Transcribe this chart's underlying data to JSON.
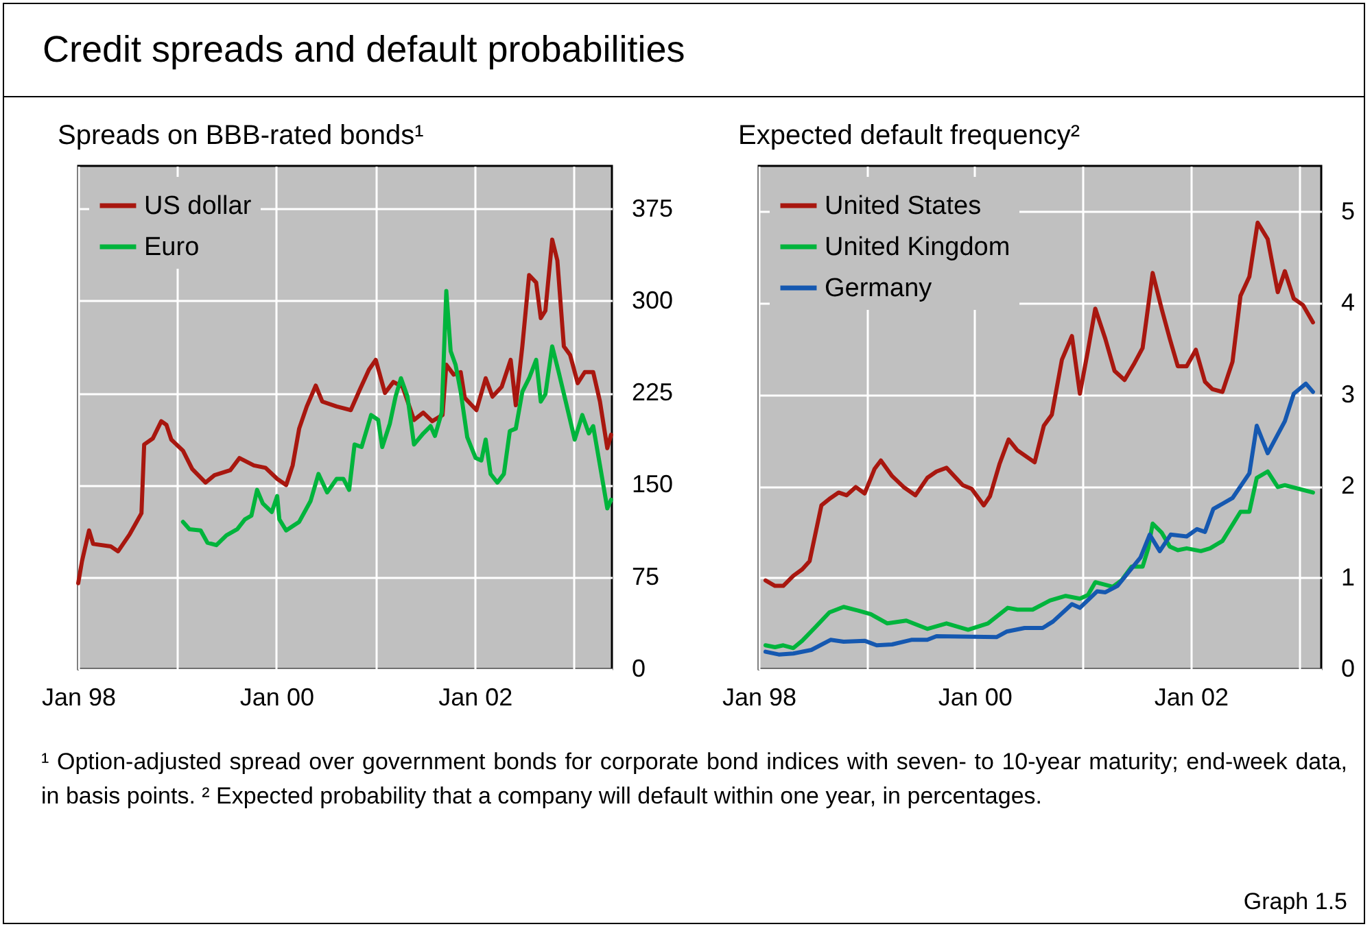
{
  "chart_data": [
    {
      "type": "line",
      "title": "Credit spreads and default probabilities",
      "subtitle": "Spreads on BBB-rated bonds¹",
      "legend": "top left",
      "grid": true,
      "line_style": "solid",
      "xlim": [
        "1998-01-01",
        "2003-05-21"
      ],
      "xticks": [
        {
          "value": "1998-01-01",
          "label": "Jan 98"
        },
        {
          "value": "1999-01-01",
          "label": null
        },
        {
          "value": "2000-01-01",
          "label": "Jan 00"
        },
        {
          "value": "2001-01-01",
          "label": null
        },
        {
          "value": "2002-01-01",
          "label": "Jan 02"
        },
        {
          "value": "2003-01-01",
          "label": null
        }
      ],
      "ylim": [
        0,
        410
      ],
      "yticks": [
        0,
        75,
        150,
        225,
        300,
        375
      ],
      "series": [
        {
          "name": "US dollar",
          "color": "#a8170f",
          "x": [
            "1998-01-01",
            "1998-01-15",
            "1998-02-10",
            "1998-02-25",
            "1998-05-01",
            "1998-05-28",
            "1998-07-10",
            "1998-08-22",
            "1998-09-01",
            "1998-10-03",
            "1998-11-03",
            "1998-11-22",
            "1998-12-10",
            "1999-01-22",
            "1999-02-25",
            "1999-04-15",
            "1999-05-18",
            "1999-07-15",
            "1999-08-18",
            "1999-10-10",
            "1999-11-22",
            "2000-01-04",
            "2000-02-06",
            "2000-03-01",
            "2000-03-25",
            "2000-04-22",
            "2000-05-25",
            "2000-06-18",
            "2000-08-10",
            "2000-10-01",
            "2000-11-04",
            "2000-12-07",
            "2001-01-01",
            "2001-02-04",
            "2001-03-07",
            "2001-04-10",
            "2001-05-22",
            "2001-06-25",
            "2001-07-28",
            "2001-09-04",
            "2001-09-18",
            "2001-10-15",
            "2001-11-10",
            "2001-11-25",
            "2002-01-07",
            "2002-02-10",
            "2002-03-07",
            "2002-04-10",
            "2002-05-13",
            "2002-06-01",
            "2002-06-25",
            "2002-07-20",
            "2002-08-15",
            "2002-09-01",
            "2002-09-18",
            "2002-10-13",
            "2002-11-01",
            "2002-11-25",
            "2002-12-18",
            "2003-01-15",
            "2003-02-10",
            "2003-03-13",
            "2003-04-07",
            "2003-05-04",
            "2003-05-18"
          ],
          "values": [
            70,
            88,
            113,
            102,
            100,
            96,
            110,
            127,
            183,
            188,
            202,
            199,
            187,
            178,
            163,
            152,
            158,
            162,
            172,
            166,
            164,
            155,
            150,
            166,
            196,
            214,
            231,
            218,
            214,
            211,
            228,
            244,
            252,
            225,
            234,
            230,
            203,
            209,
            202,
            207,
            248,
            240,
            242,
            221,
            211,
            237,
            222,
            230,
            252,
            215,
            263,
            321,
            315,
            286,
            292,
            350,
            333,
            263,
            256,
            233,
            242,
            242,
            218,
            180,
            191
          ]
        },
        {
          "name": "Euro",
          "color": "#00b43c",
          "x": [
            "1999-01-22",
            "1999-02-15",
            "1999-03-28",
            "1999-04-22",
            "1999-05-25",
            "1999-07-01",
            "1999-08-10",
            "1999-09-07",
            "1999-10-01",
            "1999-10-22",
            "1999-11-12",
            "1999-12-15",
            "2000-01-04",
            "2000-01-12",
            "2000-02-06",
            "2000-03-25",
            "2000-05-06",
            "2000-06-04",
            "2000-07-06",
            "2000-08-10",
            "2000-09-04",
            "2000-09-25",
            "2000-10-15",
            "2000-11-10",
            "2000-12-15",
            "2001-01-10",
            "2001-01-25",
            "2001-02-22",
            "2001-03-15",
            "2001-04-04",
            "2001-04-28",
            "2001-05-22",
            "2001-06-25",
            "2001-07-22",
            "2001-08-07",
            "2001-09-01",
            "2001-09-18",
            "2001-10-04",
            "2001-10-22",
            "2001-11-10",
            "2001-12-04",
            "2002-01-04",
            "2002-01-25",
            "2002-02-10",
            "2002-02-28",
            "2002-03-25",
            "2002-04-18",
            "2002-05-10",
            "2002-06-01",
            "2002-06-25",
            "2002-07-20",
            "2002-08-15",
            "2002-09-01",
            "2002-09-18",
            "2002-10-13",
            "2002-11-07",
            "2002-12-04",
            "2003-01-04",
            "2003-02-01",
            "2003-02-25",
            "2003-03-13",
            "2003-04-07",
            "2003-05-04",
            "2003-05-18"
          ],
          "values": [
            120,
            114,
            113,
            103,
            101,
            109,
            114,
            122,
            125,
            146,
            135,
            128,
            141,
            122,
            113,
            120,
            137,
            159,
            144,
            155,
            155,
            146,
            183,
            181,
            207,
            203,
            181,
            200,
            222,
            237,
            222,
            183,
            192,
            198,
            190,
            209,
            308,
            259,
            248,
            226,
            189,
            172,
            170,
            187,
            159,
            152,
            159,
            194,
            196,
            226,
            237,
            252,
            218,
            224,
            263,
            241,
            216,
            187,
            207,
            192,
            198,
            166,
            131,
            138
          ]
        }
      ]
    },
    {
      "type": "line",
      "title": "Expected default frequency²",
      "legend": "top left",
      "grid": true,
      "line_style": "solid",
      "xlim": [
        "1998-01-01",
        "2003-03-18"
      ],
      "xticks": [
        {
          "value": "1998-01-01",
          "label": "Jan 98"
        },
        {
          "value": "1999-01-01",
          "label": null
        },
        {
          "value": "2000-01-01",
          "label": "Jan 00"
        },
        {
          "value": "2001-01-01",
          "label": null
        },
        {
          "value": "2002-01-01",
          "label": "Jan 02"
        },
        {
          "value": "2003-01-01",
          "label": null
        }
      ],
      "ylim": [
        0,
        5.5
      ],
      "yticks": [
        0,
        1,
        2,
        3,
        4,
        5
      ],
      "annotations": [
        "¹ Option-adjusted spread over government bonds for corporate bond indices with seven- to 10-year maturity; end-week data, in basis points.  ² Expected probability that a company will default within one year, in percentages.",
        "Graph 1.5"
      ],
      "series": [
        {
          "name": "United States",
          "color": "#a8170f",
          "x": [
            "1998-01-24",
            "1998-02-25",
            "1998-03-25",
            "1998-04-28",
            "1998-05-28",
            "1998-06-22",
            "1998-08-01",
            "1998-09-01",
            "1998-09-28",
            "1998-10-25",
            "1998-11-25",
            "1998-12-25",
            "1999-01-28",
            "1999-02-18",
            "1999-03-28",
            "1999-05-06",
            "1999-06-15",
            "1999-07-25",
            "1999-08-25",
            "1999-09-28",
            "1999-11-22",
            "1999-12-22",
            "2000-02-01",
            "2000-02-22",
            "2000-03-25",
            "2000-04-25",
            "2000-05-25",
            "2000-07-22",
            "2000-08-22",
            "2000-09-18",
            "2000-10-22",
            "2000-11-25",
            "2000-12-22",
            "2001-01-18",
            "2001-02-12",
            "2001-03-18",
            "2001-04-18",
            "2001-05-22",
            "2001-06-22",
            "2001-07-22",
            "2001-08-25",
            "2001-09-25",
            "2001-10-22",
            "2001-11-18",
            "2001-12-18",
            "2002-01-18",
            "2002-02-18",
            "2002-03-15",
            "2002-04-18",
            "2002-05-22",
            "2002-06-18",
            "2002-07-18",
            "2002-08-15",
            "2002-09-18",
            "2002-10-22",
            "2002-11-15",
            "2002-12-15",
            "2003-01-15",
            "2003-02-18"
          ],
          "values": [
            0.97,
            0.91,
            0.91,
            1.02,
            1.09,
            1.18,
            1.79,
            1.87,
            1.93,
            1.9,
            1.99,
            1.92,
            2.19,
            2.28,
            2.11,
            1.99,
            1.9,
            2.09,
            2.16,
            2.2,
            2.01,
            1.97,
            1.79,
            1.89,
            2.24,
            2.51,
            2.39,
            2.26,
            2.66,
            2.78,
            3.38,
            3.64,
            3.01,
            3.48,
            3.94,
            3.61,
            3.26,
            3.16,
            3.33,
            3.51,
            4.33,
            3.93,
            3.61,
            3.31,
            3.31,
            3.49,
            3.14,
            3.06,
            3.03,
            3.36,
            4.08,
            4.29,
            4.88,
            4.7,
            4.12,
            4.35,
            4.05,
            3.98,
            3.79
          ]
        },
        {
          "name": "United Kingdom",
          "color": "#00b43c",
          "x": [
            "1998-01-24",
            "1998-02-25",
            "1998-03-25",
            "1998-04-28",
            "1998-05-28",
            "1998-07-12",
            "1998-08-28",
            "1998-10-15",
            "1998-12-03",
            "1999-01-15",
            "1999-03-12",
            "1999-05-15",
            "1999-07-25",
            "1999-09-28",
            "1999-12-10",
            "2000-02-15",
            "2000-04-22",
            "2000-05-25",
            "2000-07-15",
            "2000-09-12",
            "2000-11-04",
            "2000-12-22",
            "2001-01-18",
            "2001-02-12",
            "2001-04-12",
            "2001-05-12",
            "2001-06-15",
            "2001-07-22",
            "2001-08-10",
            "2001-08-25",
            "2001-09-25",
            "2001-10-22",
            "2001-11-18",
            "2001-12-18",
            "2002-02-04",
            "2002-03-07",
            "2002-04-18",
            "2002-06-18",
            "2002-07-18",
            "2002-08-12",
            "2002-09-18",
            "2002-10-22",
            "2002-11-15",
            "2003-02-18"
          ],
          "values": [
            0.26,
            0.24,
            0.26,
            0.23,
            0.31,
            0.46,
            0.62,
            0.68,
            0.64,
            0.6,
            0.5,
            0.53,
            0.44,
            0.5,
            0.43,
            0.5,
            0.67,
            0.65,
            0.65,
            0.75,
            0.8,
            0.77,
            0.81,
            0.95,
            0.9,
            0.97,
            1.12,
            1.12,
            1.32,
            1.59,
            1.49,
            1.34,
            1.3,
            1.32,
            1.29,
            1.32,
            1.4,
            1.72,
            1.72,
            2.09,
            2.16,
            1.99,
            2.01,
            1.93
          ]
        },
        {
          "name": "Germany",
          "color": "#1558b0",
          "x": [
            "1998-01-24",
            "1998-03-10",
            "1998-04-28",
            "1998-06-28",
            "1998-09-01",
            "1998-10-15",
            "1998-12-25",
            "1999-02-04",
            "1999-03-28",
            "1999-06-01",
            "1999-07-25",
            "1999-08-25",
            "2000-03-15",
            "2000-04-18",
            "2000-06-18",
            "2000-08-18",
            "2000-09-22",
            "2000-11-25",
            "2000-12-22",
            "2001-02-18",
            "2001-03-18",
            "2001-04-28",
            "2001-07-15",
            "2001-08-15",
            "2001-09-18",
            "2001-10-25",
            "2001-12-18",
            "2002-01-22",
            "2002-02-18",
            "2002-03-18",
            "2002-05-22",
            "2002-07-18",
            "2002-08-12",
            "2002-09-18",
            "2002-11-15",
            "2002-12-15",
            "2003-01-25",
            "2003-02-18"
          ],
          "values": [
            0.19,
            0.16,
            0.17,
            0.21,
            0.32,
            0.3,
            0.31,
            0.26,
            0.27,
            0.32,
            0.32,
            0.36,
            0.35,
            0.41,
            0.45,
            0.45,
            0.52,
            0.71,
            0.67,
            0.85,
            0.84,
            0.91,
            1.22,
            1.47,
            1.29,
            1.47,
            1.45,
            1.53,
            1.5,
            1.75,
            1.87,
            2.14,
            2.66,
            2.36,
            2.71,
            3.01,
            3.12,
            3.03
          ]
        }
      ]
    }
  ]
}
